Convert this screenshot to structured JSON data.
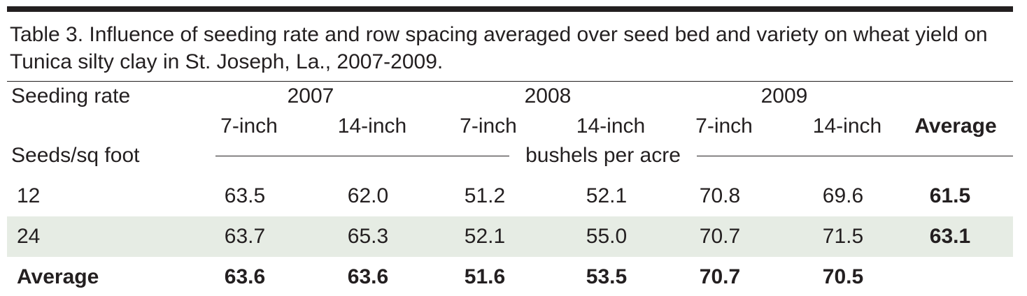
{
  "table": {
    "caption": "Table 3. Influence of seeding rate and row spacing averaged over seed bed and variety on wheat yield on Tunica silty clay in St. Joseph, La., 2007-2009.",
    "row_header_label": "Seeding rate",
    "row_unit_label": "Seeds/sq foot",
    "years": [
      "2007",
      "2008",
      "2009"
    ],
    "spacings": [
      "7-inch",
      "14-inch",
      "7-inch",
      "14-inch",
      "7-inch",
      "14-inch"
    ],
    "average_header": "Average",
    "value_unit": "bushels per acre",
    "rows": [
      {
        "label": "12",
        "values": [
          "63.5",
          "62.0",
          "51.2",
          "52.1",
          "70.8",
          "69.6"
        ],
        "average": "61.5"
      },
      {
        "label": "24",
        "values": [
          "63.7",
          "65.3",
          "52.1",
          "55.0",
          "70.7",
          "71.5"
        ],
        "average": "63.1"
      }
    ],
    "average_row": {
      "label": "Average",
      "values": [
        "63.6",
        "63.6",
        "51.6",
        "53.5",
        "70.7",
        "70.5"
      ]
    }
  },
  "colors": {
    "rule": "#231f20",
    "band": "#e6ece4",
    "text": "#231f20"
  }
}
